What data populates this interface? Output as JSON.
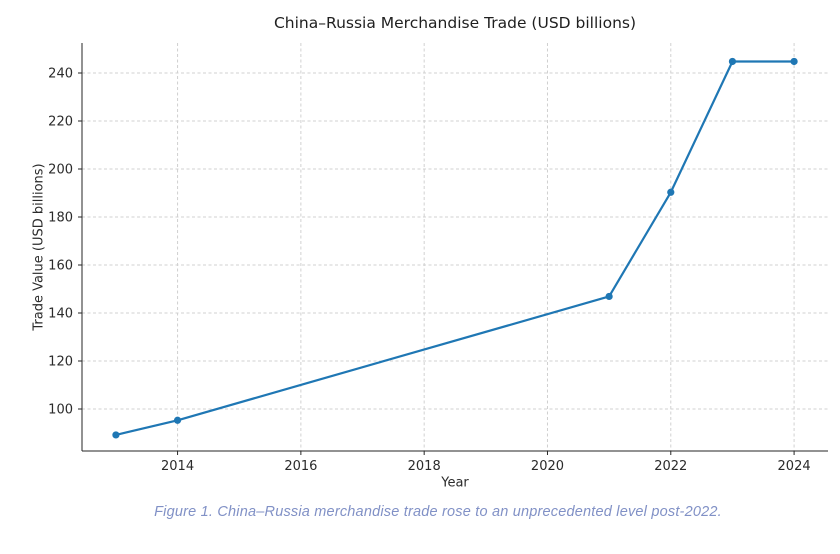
{
  "figure": {
    "caption": "Figure 1. China–Russia merchandise trade rose to an unprecedented level post-2022.",
    "caption_color": "#8191c6",
    "background_color": "#ffffff"
  },
  "chart_data": {
    "type": "line",
    "title": "China–Russia Merchandise Trade (USD billions)",
    "xlabel": "Year",
    "ylabel": "Trade Value (USD billions)",
    "x": [
      2013,
      2014,
      2021,
      2022,
      2023,
      2024
    ],
    "values": [
      89.2,
      95.3,
      146.9,
      190.3,
      244.8,
      244.8
    ],
    "xlim": [
      2012.45,
      2024.55
    ],
    "ylim": [
      82.5,
      252.5
    ],
    "xticks": [
      2014,
      2016,
      2018,
      2020,
      2022,
      2024
    ],
    "yticks": [
      100,
      120,
      140,
      160,
      180,
      200,
      220,
      240
    ],
    "grid": true,
    "grid_style": "dashed",
    "grid_color": "#d0d0d0",
    "spine_color": "#262626",
    "tick_label_color": "#2b2b2b",
    "line_color": "#1f77b4",
    "marker": "circle",
    "legend_position": "none"
  }
}
